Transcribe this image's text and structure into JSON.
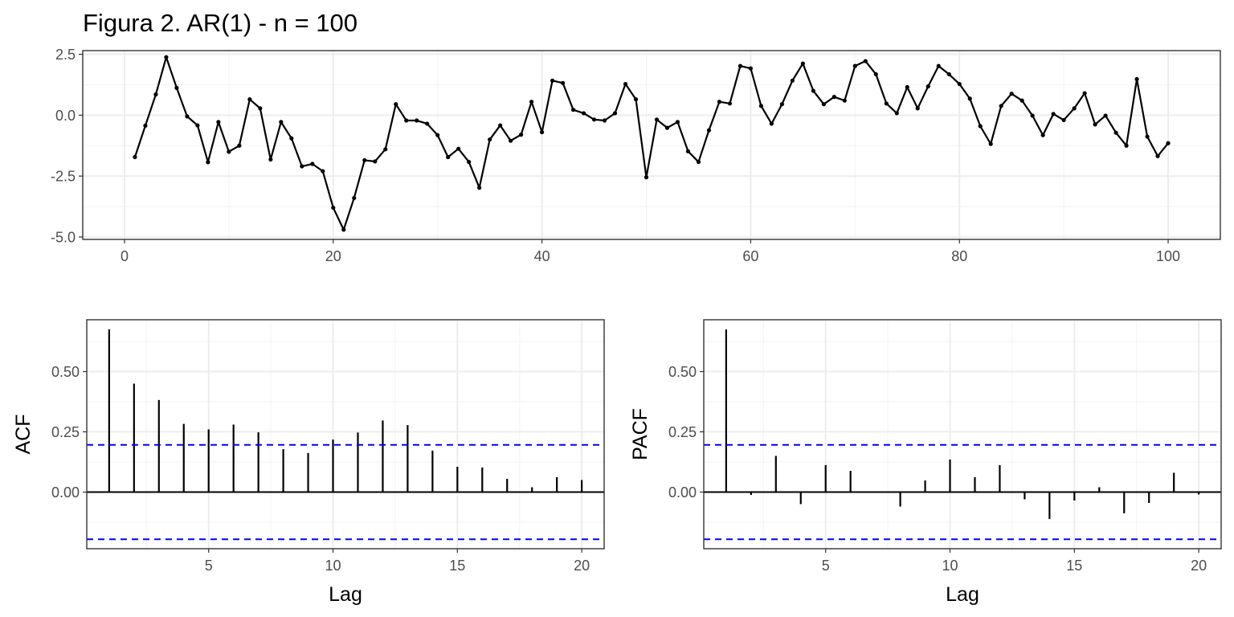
{
  "title": "Figura 2. AR(1) - n = 100",
  "colors": {
    "series": "#000000",
    "confidence": "#0000ff",
    "grid": "#ebebeb",
    "panel_border": "#333333"
  },
  "chart_data": [
    {
      "type": "line",
      "name": "time-series",
      "xlabel": "",
      "ylabel": "",
      "xlim": [
        -4,
        105
      ],
      "ylim": [
        -5.1,
        2.65
      ],
      "xticks": [
        0,
        20,
        40,
        60,
        80,
        100
      ],
      "yticks": [
        -5.0,
        -2.5,
        0.0,
        2.5
      ],
      "ytick_labels": [
        "-5.0",
        "-2.5",
        "0.0",
        "2.5"
      ],
      "grid": true,
      "markers": true,
      "x": [
        1,
        2,
        3,
        4,
        5,
        6,
        7,
        8,
        9,
        10,
        11,
        12,
        13,
        14,
        15,
        16,
        17,
        18,
        19,
        20,
        21,
        22,
        23,
        24,
        25,
        26,
        27,
        28,
        29,
        30,
        31,
        32,
        33,
        34,
        35,
        36,
        37,
        38,
        39,
        40,
        41,
        42,
        43,
        44,
        45,
        46,
        47,
        48,
        49,
        50,
        51,
        52,
        53,
        54,
        55,
        56,
        57,
        58,
        59,
        60,
        61,
        62,
        63,
        64,
        65,
        66,
        67,
        68,
        69,
        70,
        71,
        72,
        73,
        74,
        75,
        76,
        77,
        78,
        79,
        80,
        81,
        82,
        83,
        84,
        85,
        86,
        87,
        88,
        89,
        90,
        91,
        92,
        93,
        94,
        95,
        96,
        97,
        98,
        99,
        100
      ],
      "y": [
        -1.72,
        -0.43,
        0.85,
        2.38,
        1.12,
        -0.05,
        -0.42,
        -1.93,
        -0.28,
        -1.5,
        -1.25,
        0.65,
        0.28,
        -1.82,
        -0.28,
        -0.95,
        -2.1,
        -2.0,
        -2.3,
        -3.8,
        -4.7,
        -3.4,
        -1.85,
        -1.9,
        -1.4,
        0.45,
        -0.22,
        -0.22,
        -0.35,
        -0.82,
        -1.72,
        -1.38,
        -1.92,
        -2.98,
        -1.0,
        -0.42,
        -1.05,
        -0.8,
        0.55,
        -0.7,
        1.42,
        1.32,
        0.22,
        0.08,
        -0.18,
        -0.22,
        0.08,
        1.28,
        0.65,
        -2.55,
        -0.18,
        -0.52,
        -0.28,
        -1.48,
        -1.92,
        -0.62,
        0.55,
        0.48,
        2.02,
        1.92,
        0.38,
        -0.35,
        0.45,
        1.42,
        2.12,
        1.0,
        0.45,
        0.75,
        0.6,
        2.02,
        2.22,
        1.68,
        0.48,
        0.08,
        1.15,
        0.28,
        1.18,
        2.02,
        1.68,
        1.28,
        0.68,
        -0.45,
        -1.18,
        0.38,
        0.88,
        0.6,
        -0.02,
        -0.82,
        0.05,
        -0.2,
        0.28,
        0.9,
        -0.38,
        -0.02,
        -0.72,
        -1.25,
        1.48,
        -0.88,
        -1.68,
        -1.15
      ]
    },
    {
      "type": "bar",
      "name": "acf",
      "xlabel": "Lag",
      "ylabel": "ACF",
      "xlim": [
        0.1,
        20.9
      ],
      "ylim": [
        -0.235,
        0.715
      ],
      "xticks": [
        5,
        10,
        15,
        20
      ],
      "yticks": [
        0.0,
        0.25,
        0.5
      ],
      "ytick_labels": [
        "0.00",
        "0.25",
        "0.50"
      ],
      "confidence_bound": 0.196,
      "grid": true,
      "x": [
        1,
        2,
        3,
        4,
        5,
        6,
        7,
        8,
        9,
        10,
        11,
        12,
        13,
        14,
        15,
        16,
        17,
        18,
        19,
        20
      ],
      "values": [
        0.675,
        0.45,
        0.382,
        0.283,
        0.26,
        0.28,
        0.248,
        0.178,
        0.162,
        0.218,
        0.247,
        0.297,
        0.278,
        0.172,
        0.105,
        0.102,
        0.055,
        0.02,
        0.062,
        0.05
      ]
    },
    {
      "type": "bar",
      "name": "pacf",
      "xlabel": "Lag",
      "ylabel": "PACF",
      "xlim": [
        0.1,
        20.9
      ],
      "ylim": [
        -0.235,
        0.715
      ],
      "xticks": [
        5,
        10,
        15,
        20
      ],
      "yticks": [
        0.0,
        0.25,
        0.5
      ],
      "ytick_labels": [
        "0.00",
        "0.25",
        "0.50"
      ],
      "confidence_bound": 0.196,
      "grid": true,
      "x": [
        1,
        2,
        3,
        4,
        5,
        6,
        7,
        8,
        9,
        10,
        11,
        12,
        13,
        14,
        15,
        16,
        17,
        18,
        19,
        20
      ],
      "values": [
        0.675,
        -0.012,
        0.15,
        -0.05,
        0.112,
        0.088,
        0.0,
        -0.06,
        0.048,
        0.135,
        0.062,
        0.112,
        -0.03,
        -0.112,
        -0.035,
        0.02,
        -0.088,
        -0.045,
        0.08,
        -0.01
      ]
    }
  ]
}
